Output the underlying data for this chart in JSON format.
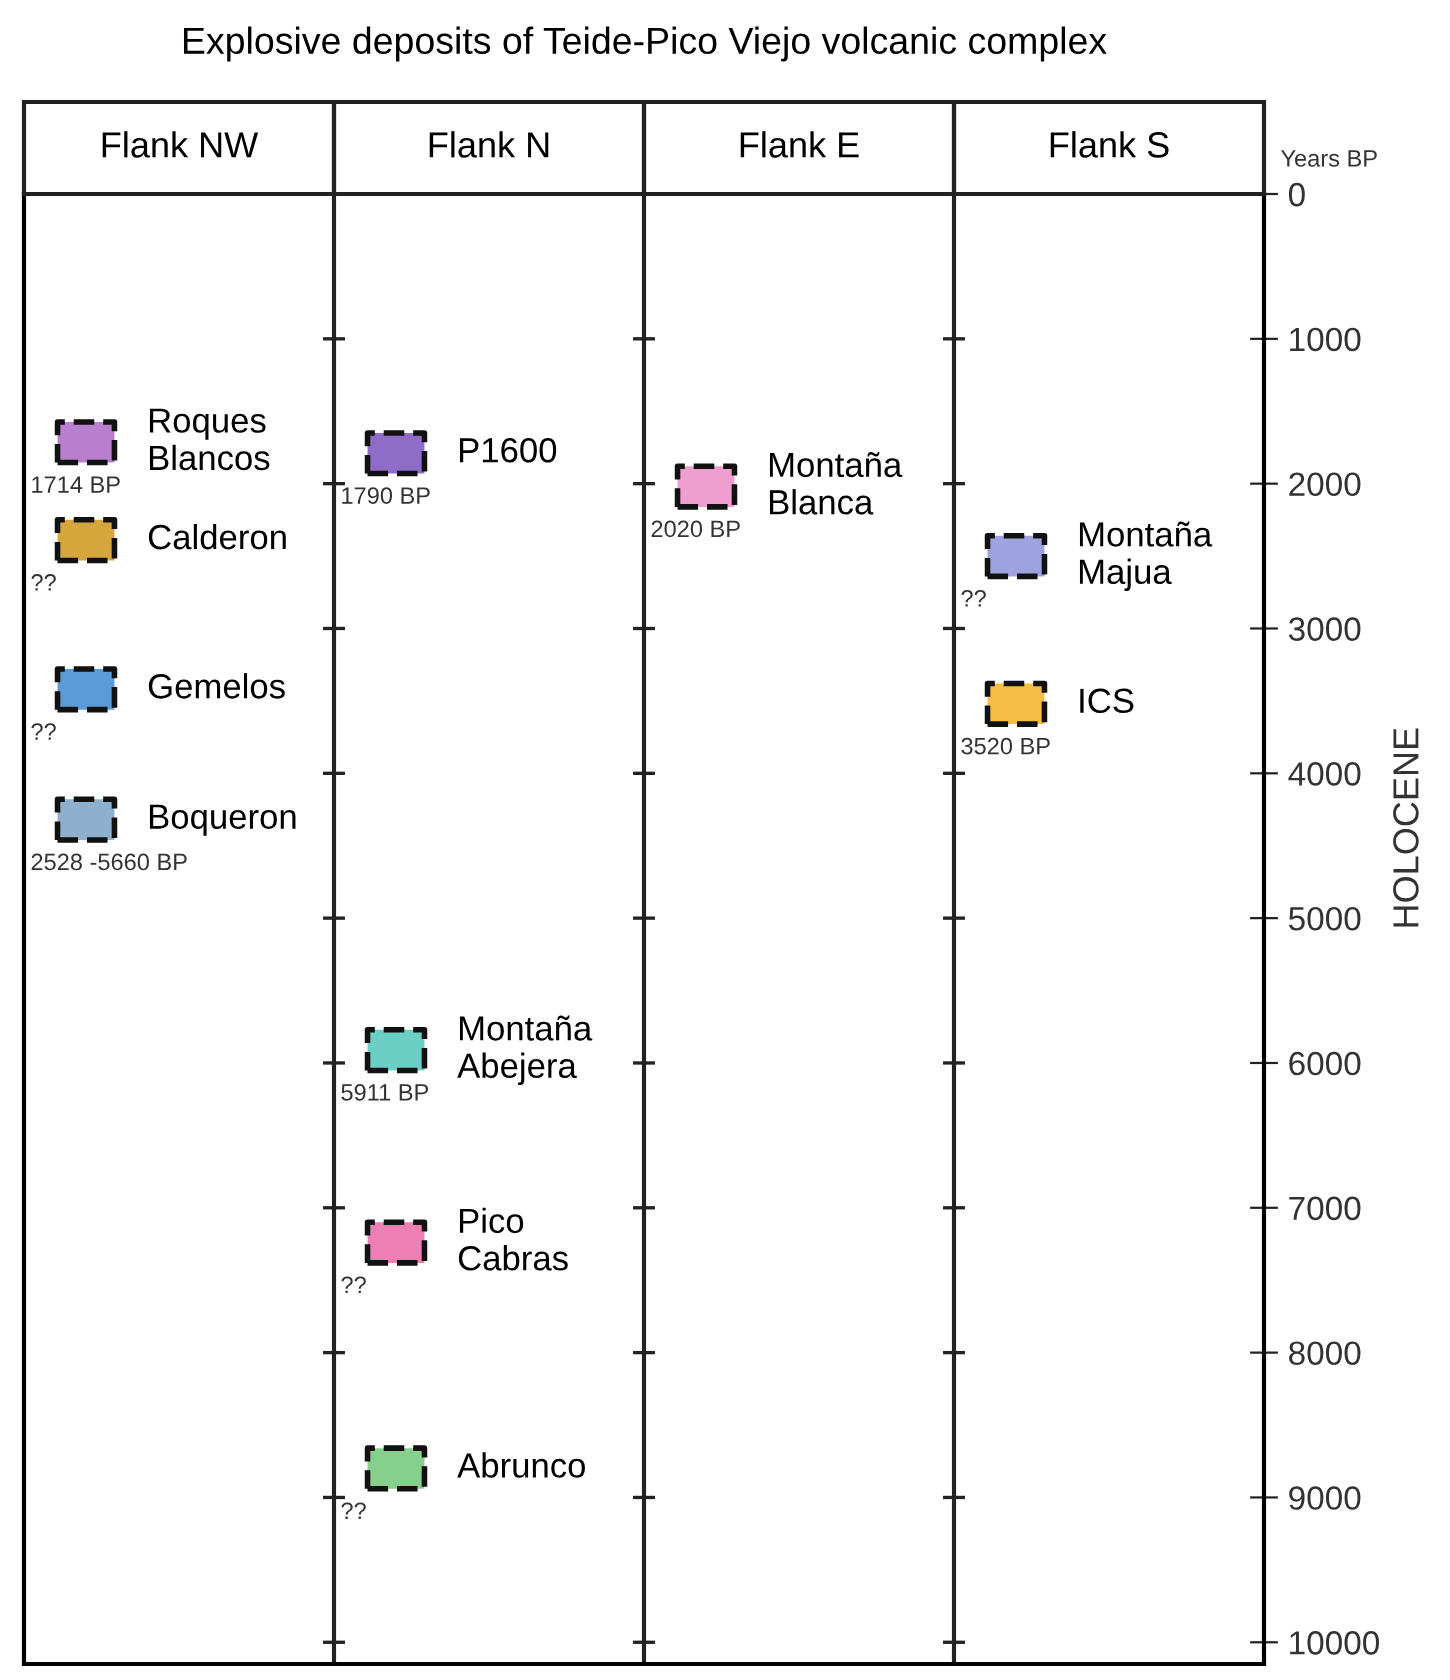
{
  "chart_data": {
    "type": "scatter",
    "title": "Explosive deposits of Teide-Pico Viejo volcanic complex",
    "ylabel": "Years BP",
    "categories": [
      "Flank NW",
      "Flank N",
      "Flank E",
      "Flank S"
    ],
    "series": [
      {
        "name": "Roques\nBlancos",
        "x": [
          "Flank NW"
        ],
        "values": [
          1714
        ],
        "color": "#b97fcf",
        "value_labels": [
          "1714 BP"
        ]
      },
      {
        "name": "Calderon",
        "x": [
          "Flank NW"
        ],
        "values": [
          2390
        ],
        "color": "#d4a63c",
        "value_labels": [
          "??"
        ]
      },
      {
        "name": "Gemelos",
        "x": [
          "Flank NW"
        ],
        "values": [
          3420
        ],
        "color": "#5a9bd8",
        "value_labels": [
          "??"
        ]
      },
      {
        "name": "Boqueron",
        "x": [
          "Flank NW"
        ],
        "values": [
          4320
        ],
        "color": "#8fb0cc",
        "value_labels": [
          "2528 -5660 BP"
        ]
      },
      {
        "name": "P1600",
        "x": [
          "Flank N"
        ],
        "values": [
          1790
        ],
        "color": "#8e6cc8",
        "value_labels": [
          "1790 BP"
        ]
      },
      {
        "name": "Montaña\nAbejera",
        "x": [
          "Flank N"
        ],
        "values": [
          5911
        ],
        "color": "#6ccfc6",
        "value_labels": [
          "5911 BP"
        ]
      },
      {
        "name": "Pico\nCabras",
        "x": [
          "Flank N"
        ],
        "values": [
          7240
        ],
        "color": "#ee7fb4",
        "value_labels": [
          "??"
        ]
      },
      {
        "name": "Abrunco",
        "x": [
          "Flank N"
        ],
        "values": [
          8800
        ],
        "color": "#86cf8c",
        "value_labels": [
          "??"
        ]
      },
      {
        "name": "Montaña\nBlanca",
        "x": [
          "Flank E"
        ],
        "values": [
          2020
        ],
        "color": "#ee9fcf",
        "value_labels": [
          "2020 BP"
        ]
      },
      {
        "name": "Montaña\nMajua",
        "x": [
          "Flank S"
        ],
        "values": [
          2500
        ],
        "color": "#9ea3e0",
        "value_labels": [
          "??"
        ]
      },
      {
        "name": "ICS",
        "x": [
          "Flank S"
        ],
        "values": [
          3520
        ],
        "color": "#f5bd45",
        "value_labels": [
          "3520 BP"
        ]
      }
    ],
    "annotations": [
      "HOLOCENE"
    ],
    "ylim": [
      10150,
      0
    ],
    "yticks": [
      0,
      1000,
      2000,
      3000,
      4000,
      5000,
      6000,
      7000,
      8000,
      9000,
      10000
    ],
    "marker": "square",
    "grid": false,
    "legend": false
  }
}
